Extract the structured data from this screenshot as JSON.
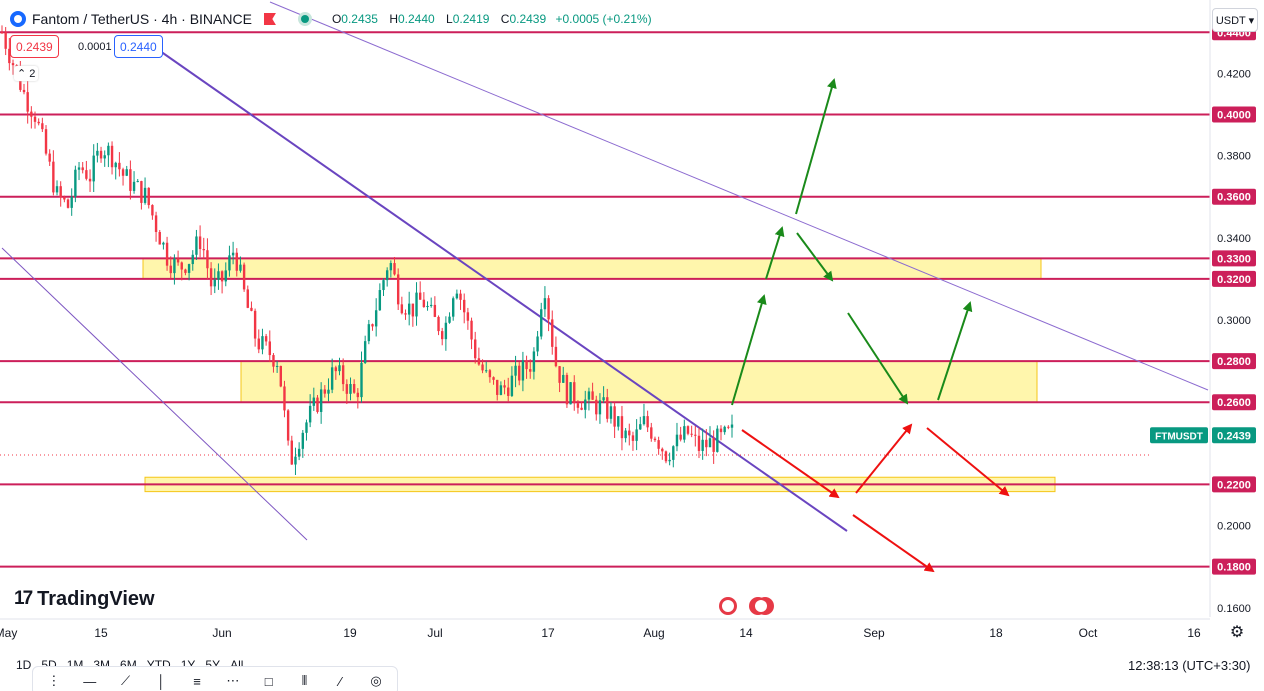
{
  "header": {
    "symbol": "Fantom / TetherUS · 4h · BINANCE",
    "ohlc": {
      "o_label": "O",
      "o": "0.2435",
      "h_label": "H",
      "h": "0.2440",
      "l_label": "L",
      "l": "0.2419",
      "c_label": "C",
      "c": "0.2439",
      "change": "+0.0005 (+0.21%)"
    },
    "sell_price": "0.2439",
    "spread": "0.0001",
    "buy_price": "0.2440",
    "indicator_toggle": "2",
    "currency": "USDT ▾"
  },
  "brand": "TradingView",
  "bottom": {
    "ranges": [
      "1D",
      "5D",
      "1M",
      "3M",
      "6M",
      "YTD",
      "1Y",
      "5Y",
      "All"
    ],
    "clock": "12:38:13 (UTC+3:30)"
  },
  "colors": {
    "up": "#089981",
    "down": "#f23645",
    "level": "#cc1f5a",
    "channel": "#7e57c2",
    "zone": "#fff59d",
    "zone_border": "#f5c518",
    "arrow_up": "#1a8a1a",
    "arrow_down": "#ee1111"
  },
  "chart_data": {
    "type": "candlestick",
    "symbol_tag": "FTMUSDT",
    "last_price": 0.2439,
    "ylim": [
      0.1555,
      0.4557
    ],
    "y_ticks": [
      "0.1600",
      "0.2000",
      "0.3000",
      "0.3400",
      "0.3800",
      "0.4200"
    ],
    "x_ticks": [
      "May",
      "15",
      "Jun",
      "19",
      "Jul",
      "17",
      "Aug",
      "14",
      "Sep",
      "18",
      "Oct",
      "16"
    ],
    "horizontal_levels": [
      0.44,
      0.4,
      0.36,
      0.33,
      0.32,
      0.28,
      0.26,
      0.22,
      0.18
    ],
    "level_labels": [
      "0.4400",
      "0.4000",
      "0.3600",
      "0.3300",
      "0.3200",
      "0.2800",
      "0.2600",
      "0.2200",
      "0.1800"
    ],
    "zones": [
      [
        0.32,
        0.33
      ],
      [
        0.26,
        0.28
      ],
      [
        0.2165,
        0.2235
      ]
    ],
    "close_path": [
      0.44,
      0.425,
      0.41,
      0.4,
      0.38,
      0.36,
      0.355,
      0.375,
      0.37,
      0.385,
      0.38,
      0.37,
      0.365,
      0.36,
      0.345,
      0.33,
      0.325,
      0.33,
      0.34,
      0.315,
      0.32,
      0.335,
      0.31,
      0.29,
      0.285,
      0.28,
      0.23,
      0.245,
      0.255,
      0.265,
      0.275,
      0.27,
      0.262,
      0.29,
      0.31,
      0.33,
      0.31,
      0.305,
      0.31,
      0.3,
      0.295,
      0.32,
      0.3,
      0.28,
      0.27,
      0.265,
      0.27,
      0.275,
      0.28,
      0.32,
      0.28,
      0.265,
      0.262,
      0.26,
      0.258,
      0.255,
      0.245,
      0.24,
      0.25,
      0.245,
      0.235,
      0.24,
      0.245,
      0.238,
      0.24,
      0.242,
      0.245
    ]
  }
}
